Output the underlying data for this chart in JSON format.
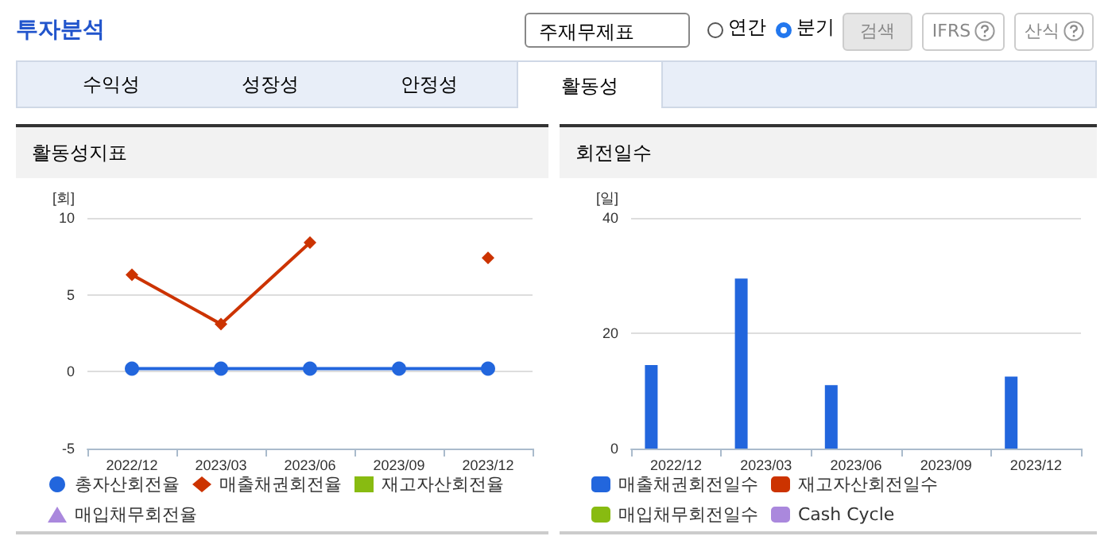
{
  "chart_data": [
    {
      "type": "other",
      "title": "투자분석",
      "annotations": [
        "주재무제표",
        "연간",
        "분기",
        "검색",
        "IFRS",
        "산식",
        "수익성",
        "성장성",
        "안정성",
        "활동성"
      ]
    },
    {
      "type": "line",
      "title": "활동성지표",
      "ylabel": "[회]",
      "categories": [
        "2022/12",
        "2023/03",
        "2023/06",
        "2023/09",
        "2023/12"
      ],
      "ylim": [
        -5,
        10
      ],
      "yticks": [
        -5,
        0,
        5,
        10
      ],
      "grid": "y",
      "legend": "bottom",
      "line_style": "solid",
      "series": [
        {
          "name": "총자산회전율",
          "color": "#2266dd",
          "marker": "circle",
          "values": [
            0.2,
            0.2,
            0.2,
            0.2,
            0.2
          ]
        },
        {
          "name": "매출채권회전율",
          "color": "#cc3300",
          "marker": "diamond",
          "values": [
            6.3,
            3.1,
            8.4,
            null,
            7.4
          ]
        },
        {
          "name": "재고자산회전율",
          "color": "#88bb11",
          "marker": "square",
          "values": [
            null,
            null,
            null,
            null,
            null
          ]
        },
        {
          "name": "매입채무회전율",
          "color": "#aa88dd",
          "marker": "triangle",
          "values": [
            null,
            null,
            null,
            null,
            null
          ]
        }
      ]
    },
    {
      "type": "bar",
      "title": "회전일수",
      "ylabel": "[일]",
      "categories": [
        "2022/12",
        "2023/03",
        "2023/06",
        "2023/09",
        "2023/12"
      ],
      "ylim": [
        0,
        40
      ],
      "yticks": [
        0,
        20,
        40
      ],
      "grid": "y",
      "legend": "bottom",
      "series": [
        {
          "name": "매출채권회전일수",
          "color": "#2266dd",
          "values": [
            14.5,
            29.5,
            11,
            null,
            12.5
          ]
        },
        {
          "name": "재고자산회전일수",
          "color": "#cc3300",
          "values": [
            null,
            null,
            null,
            null,
            null
          ]
        },
        {
          "name": "매입채무회전일수",
          "color": "#88bb11",
          "values": [
            null,
            null,
            null,
            null,
            null
          ]
        },
        {
          "name": "Cash Cycle",
          "color": "#aa88dd",
          "values": [
            null,
            null,
            null,
            null,
            null
          ]
        }
      ]
    }
  ]
}
